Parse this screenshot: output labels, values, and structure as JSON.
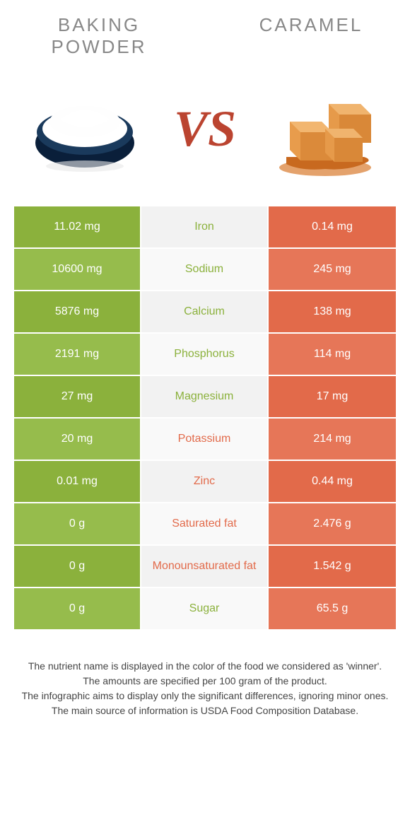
{
  "food_left": {
    "name": "BAKING POWDER",
    "color": "#8bb13c",
    "color_alt": "#94b84a"
  },
  "food_right": {
    "name": "CARAMEL",
    "color": "#e26a4a",
    "color_alt": "#e67455"
  },
  "vs": "VS",
  "colors": {
    "mid_bg_odd": "#f2f2f2",
    "mid_bg_even": "#f9f9f9",
    "left_green_a": "#8bb13c",
    "left_green_b": "#96bc4c",
    "right_orange_a": "#e26a4a",
    "right_orange_b": "#e67658"
  },
  "nutrients": [
    {
      "name": "Iron",
      "left": "11.02 mg",
      "right": "0.14 mg",
      "winner": "left"
    },
    {
      "name": "Sodium",
      "left": "10600 mg",
      "right": "245 mg",
      "winner": "left"
    },
    {
      "name": "Calcium",
      "left": "5876 mg",
      "right": "138 mg",
      "winner": "left"
    },
    {
      "name": "Phosphorus",
      "left": "2191 mg",
      "right": "114 mg",
      "winner": "left"
    },
    {
      "name": "Magnesium",
      "left": "27 mg",
      "right": "17 mg",
      "winner": "left"
    },
    {
      "name": "Potassium",
      "left": "20 mg",
      "right": "214 mg",
      "winner": "right"
    },
    {
      "name": "Zinc",
      "left": "0.01 mg",
      "right": "0.44 mg",
      "winner": "right"
    },
    {
      "name": "Saturated fat",
      "left": "0 g",
      "right": "2.476 g",
      "winner": "right"
    },
    {
      "name": "Monounsaturated fat",
      "left": "0 g",
      "right": "1.542 g",
      "winner": "right"
    },
    {
      "name": "Sugar",
      "left": "0 g",
      "right": "65.5 g",
      "winner": "left"
    }
  ],
  "footnotes": [
    "The nutrient name is displayed in the color of the food we considered as 'winner'.",
    "The amounts are specified per 100 gram of the product.",
    "The infographic aims to display only the significant differences, ignoring minor ones.",
    "The main source of information is USDA Food Composition Database."
  ]
}
